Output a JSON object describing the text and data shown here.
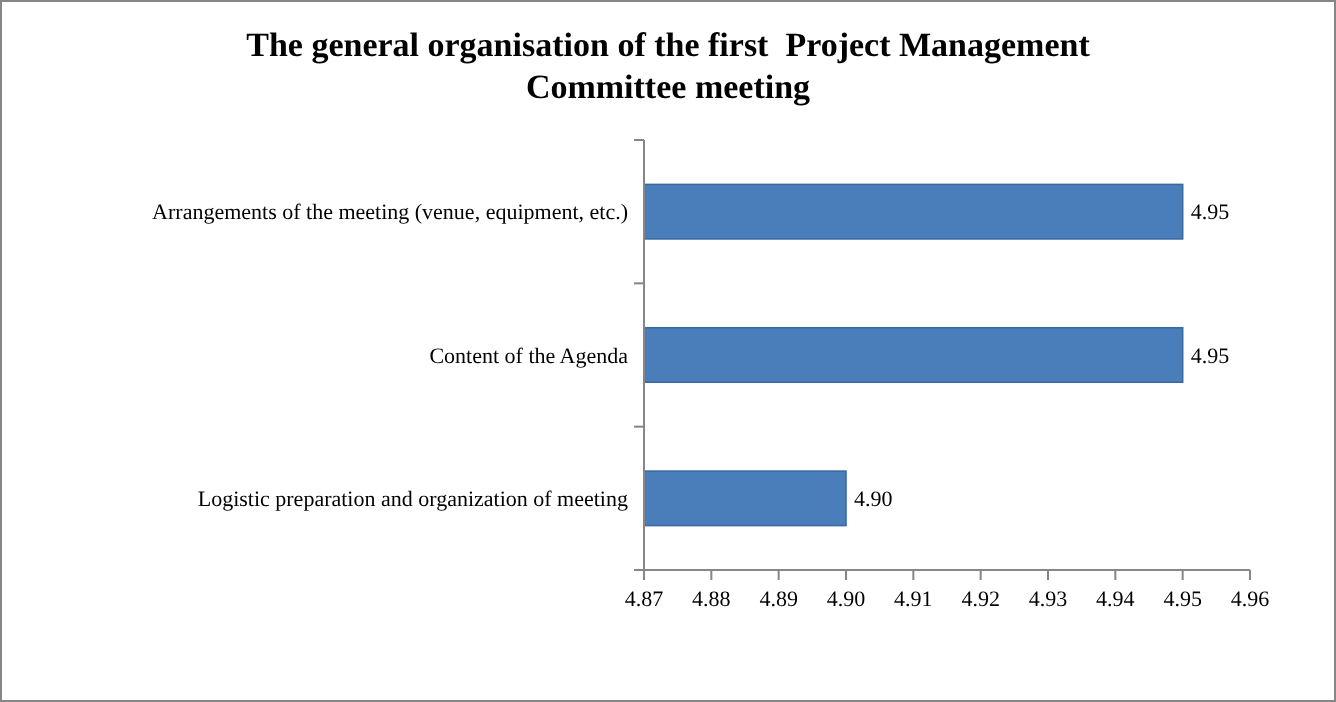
{
  "chart_data": {
    "type": "bar",
    "orientation": "horizontal",
    "title": "The general organisation of the first  Project Management Committee meeting",
    "categories": [
      "Arrangements of the meeting (venue, equipment, etc.)",
      "Content of the Agenda",
      "Logistic preparation and organization of meeting"
    ],
    "values": [
      4.95,
      4.95,
      4.9
    ],
    "color": "#4a7ebb",
    "value_labels": [
      "4.95",
      "4.95",
      "4.90"
    ],
    "xlim": [
      4.87,
      4.96
    ],
    "xticks": [
      4.87,
      4.88,
      4.89,
      {
        "value": 4.9,
        "label": "4.90"
      },
      4.91,
      4.92,
      4.93,
      4.94,
      4.95,
      4.96
    ],
    "grid": false
  }
}
